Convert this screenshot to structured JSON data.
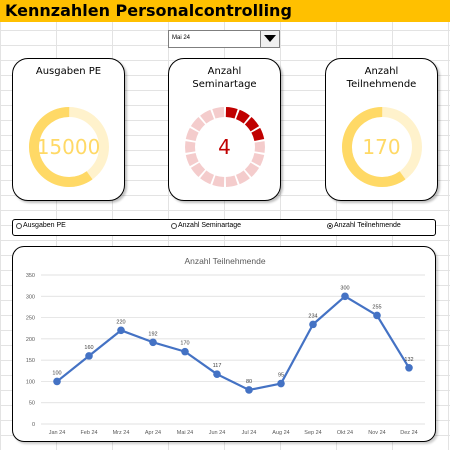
{
  "header": {
    "title": "Kennzahlen Personalcontrolling"
  },
  "month_select": {
    "value": "Mai 24"
  },
  "kpis": [
    {
      "title_line1": "Ausgaben PE",
      "title_line2": "",
      "value": "15000",
      "value_color": "#ffd966",
      "filled_color": "#ffd966",
      "empty_color": "#fff2cc",
      "segments": 18,
      "filled_fraction": 0.6,
      "segmented": false
    },
    {
      "title_line1": "Anzahl",
      "title_line2": "Seminartage",
      "value": "4",
      "value_color": "#c00000",
      "filled_color": "#c00000",
      "empty_color": "#f4cccc",
      "segments": 18,
      "filled_fraction": 0.22,
      "segmented": true
    },
    {
      "title_line1": "Anzahl",
      "title_line2": "Teilnehmende",
      "value": "170",
      "value_color": "#ffd966",
      "filled_color": "#ffd966",
      "empty_color": "#fff2cc",
      "segments": 18,
      "filled_fraction": 0.6,
      "segmented": false
    }
  ],
  "options": [
    {
      "label": "Ausgaben PE",
      "selected": false
    },
    {
      "label": "Anzahl Seminartage",
      "selected": false
    },
    {
      "label": "Anzahl Teilnehmende",
      "selected": true
    }
  ],
  "chart_data": {
    "type": "line",
    "title": "Anzahl Teilnehmende",
    "categories": [
      "Jan 24",
      "Feb 24",
      "Mrz 24",
      "Apr 24",
      "Mai 24",
      "Jun 24",
      "Jul 24",
      "Aug 24",
      "Sep 24",
      "Okt 24",
      "Nov 24",
      "Dez 24"
    ],
    "values": [
      100,
      160,
      220,
      192,
      170,
      117,
      80,
      95,
      234,
      300,
      255,
      132
    ],
    "yticks": [
      0,
      50,
      100,
      150,
      200,
      250,
      300,
      350
    ],
    "ylim": [
      0,
      350
    ],
    "color": "#4472c4",
    "grid": true
  }
}
